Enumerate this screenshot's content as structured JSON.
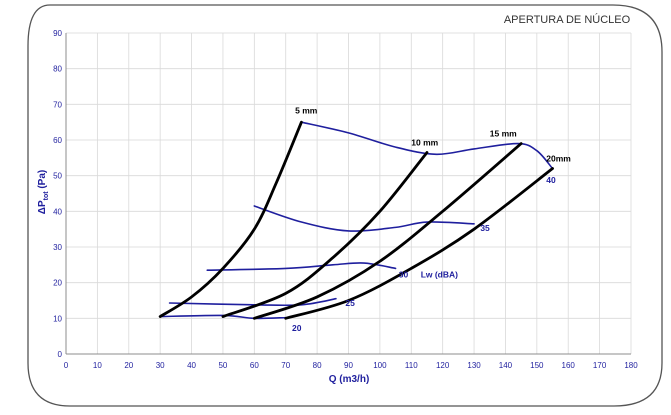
{
  "header": {
    "title": "APERTURA DE NÚCLEO"
  },
  "chart_data": {
    "type": "line",
    "title": "APERTURA DE NÚCLEO",
    "xlabel": "Q (m3/h)",
    "ylabel": {
      "prefix": "ΔP",
      "sub": "tot",
      "suffix": " (Pa)"
    },
    "xlim": [
      0,
      180
    ],
    "ylim": [
      0,
      90
    ],
    "xticks": [
      0,
      10,
      20,
      30,
      40,
      50,
      60,
      70,
      80,
      90,
      100,
      110,
      120,
      130,
      140,
      150,
      160,
      170,
      180
    ],
    "yticks": [
      0,
      10,
      20,
      30,
      40,
      50,
      60,
      70,
      80,
      90
    ],
    "grid": true,
    "opening_curves": [
      {
        "name": "5 mm",
        "points": [
          [
            30,
            10.5
          ],
          [
            40,
            16
          ],
          [
            50,
            24
          ],
          [
            60,
            35
          ],
          [
            67,
            48
          ],
          [
            75,
            65
          ]
        ]
      },
      {
        "name": "10 mm",
        "points": [
          [
            50,
            10.5
          ],
          [
            70,
            17
          ],
          [
            85,
            27
          ],
          [
            100,
            40
          ],
          [
            115,
            56.5
          ]
        ]
      },
      {
        "name": "15 mm",
        "points": [
          [
            60,
            10
          ],
          [
            80,
            16
          ],
          [
            100,
            26
          ],
          [
            120,
            40
          ],
          [
            145,
            59
          ]
        ]
      },
      {
        "name": "20mm",
        "points": [
          [
            70,
            10
          ],
          [
            90,
            15
          ],
          [
            110,
            24
          ],
          [
            130,
            35
          ],
          [
            155,
            52
          ]
        ]
      }
    ],
    "noise_curves": [
      {
        "name": "20",
        "points": [
          [
            30,
            10.5
          ],
          [
            50,
            10.8
          ],
          [
            60,
            10
          ],
          [
            70,
            10.2
          ]
        ]
      },
      {
        "name": "25",
        "points": [
          [
            33,
            14.3
          ],
          [
            60,
            13.8
          ],
          [
            75,
            13.8
          ],
          [
            86,
            15.5
          ]
        ]
      },
      {
        "name": "30",
        "points": [
          [
            45,
            23.5
          ],
          [
            70,
            24
          ],
          [
            85,
            25
          ],
          [
            95,
            25.5
          ],
          [
            105,
            24
          ]
        ]
      },
      {
        "name": "35",
        "points": [
          [
            60,
            41.5
          ],
          [
            75,
            37
          ],
          [
            90,
            34.5
          ],
          [
            105,
            35.5
          ],
          [
            115,
            37
          ],
          [
            130,
            36.5
          ]
        ]
      },
      {
        "name": "40",
        "points": [
          [
            75,
            65
          ],
          [
            90,
            62
          ],
          [
            105,
            58
          ],
          [
            118,
            56
          ],
          [
            130,
            57.5
          ],
          [
            144,
            59
          ],
          [
            150,
            57
          ],
          [
            155,
            52
          ]
        ]
      }
    ],
    "annotations": [
      {
        "text": "5 mm",
        "x": 73,
        "y": 67.5,
        "color": "#000000"
      },
      {
        "text": "10 mm",
        "x": 110,
        "y": 58.5,
        "color": "#000000"
      },
      {
        "text": "15 mm",
        "x": 135,
        "y": 61,
        "color": "#000000"
      },
      {
        "text": "20mm",
        "x": 153,
        "y": 54,
        "color": "#000000"
      },
      {
        "text": "20",
        "x": 72,
        "y": 6.5,
        "color": "#1f1f9e"
      },
      {
        "text": "25",
        "x": 89,
        "y": 13.5,
        "color": "#1f1f9e"
      },
      {
        "text": "30",
        "x": 106,
        "y": 21.5,
        "color": "#1f1f9e"
      },
      {
        "text": "35",
        "x": 132,
        "y": 34.5,
        "color": "#1f1f9e"
      },
      {
        "text": "40",
        "x": 153,
        "y": 48,
        "color": "#1f1f9e"
      },
      {
        "text": "Lw (dBA)",
        "x": 113,
        "y": 21.5,
        "color": "#1f1f9e"
      }
    ],
    "colors": {
      "opening": "#000000",
      "noise": "#1f1f9e",
      "axis_text": "#1f1f9e",
      "grid": "#d9d9d9"
    }
  }
}
